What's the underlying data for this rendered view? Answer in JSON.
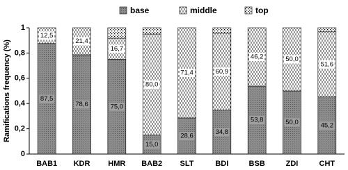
{
  "chart_data": {
    "type": "stacked_bar",
    "y_label": "Ramifications frequency (%)",
    "categories": [
      "BAB1",
      "KDR",
      "HMR",
      "BAB2",
      "SLT",
      "BDI",
      "BSB",
      "ZDI",
      "CHT"
    ],
    "series": [
      {
        "name": "base",
        "color": "#8c8c8c",
        "values": [
          0.875,
          0.786,
          0.75,
          0.15,
          0.286,
          0.348,
          0.538,
          0.5,
          0.452
        ],
        "value_labels": [
          "87,5",
          "78,6",
          "75,0",
          "15,0",
          "28,6",
          "34,8",
          "53,8",
          "50,0",
          "45,2"
        ]
      },
      {
        "name": "middle",
        "color": "#ffffff",
        "values": [
          0.125,
          0.214,
          0.167,
          0.8,
          0.714,
          0.609,
          0.462,
          0.5,
          0.516
        ],
        "value_labels": [
          "12,5",
          "21,4",
          "16,7",
          "80,0",
          "71,4",
          "60,9",
          "46,2",
          "50,0",
          "51,6"
        ]
      },
      {
        "name": "top",
        "color": "#ffffff",
        "values": [
          0,
          0,
          0.083,
          0.05,
          0,
          0.043,
          0,
          0,
          0.032
        ]
      }
    ],
    "ylim": [
      0,
      1
    ],
    "yticks": [
      0,
      {
        "value": 0.2,
        "label": "0,2"
      },
      {
        "value": 0.4,
        "label": "0,4"
      },
      {
        "value": 0.6,
        "label": "0,6"
      },
      {
        "value": 0.8,
        "label": "0,8"
      },
      1
    ],
    "grid": false,
    "legend": "top"
  }
}
